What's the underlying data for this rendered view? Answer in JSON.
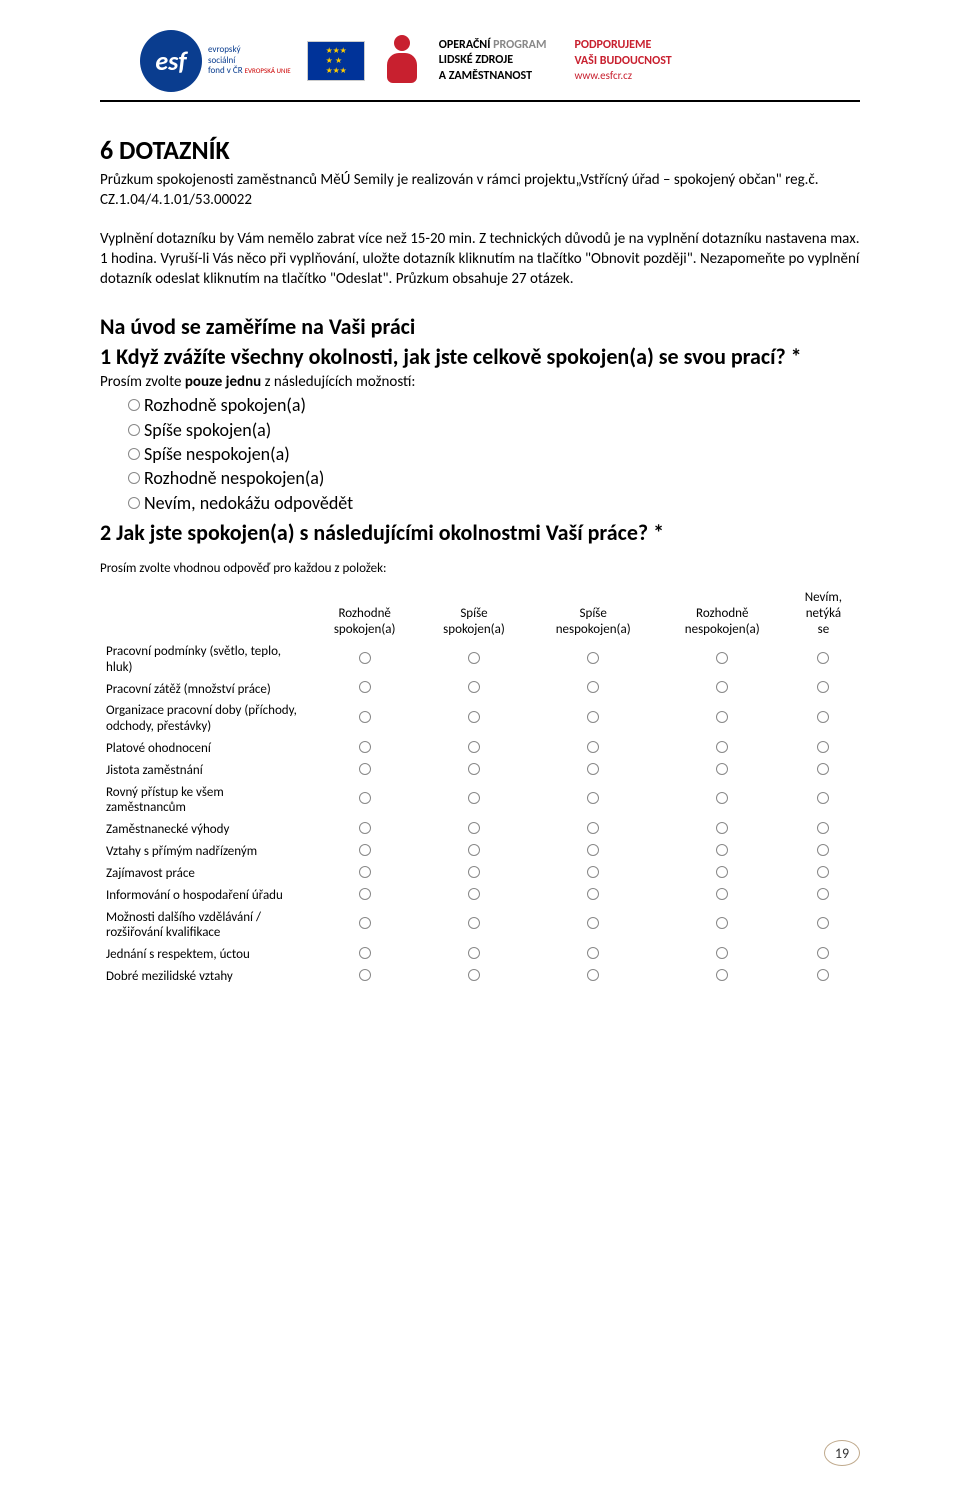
{
  "header": {
    "esf_label_line1": "evropský",
    "esf_label_line2": "sociální",
    "esf_label_line3": "fond v ČR",
    "esf_label_suffix": "EVROPSKÁ UNIE",
    "op_line1a": "OPERAČNÍ",
    "op_line1b": "PROGRAM",
    "op_line2a": "LIDSKÉ ZDROJE",
    "op_line3a": "A ZAMĚSTNANOST",
    "op_line4a": "PODPORUJEME",
    "op_line5a": "VAŠI BUDOUCNOST",
    "op_link": "www.esfcr.cz"
  },
  "section": {
    "title": "6   DOTAZNÍK",
    "intro": "Průzkum spokojenosti zaměstnanců MěÚ Semily je realizován v rámci projektu„Vstřícný úřad – spokojený občan\" reg.č. CZ.1.04/4.1.01/53.00022",
    "instructions": "Vyplnění dotazníku by Vám nemělo zabrat více než 15-20 min. Z technických důvodů je na vyplnění dotazníku nastavena max. 1 hodina. Vyruší-li Vás něco při vyplňování, uložte dotazník kliknutím na tlačítko \"Obnovit později\". Nezapomeňte po vyplnění dotazník odeslat kliknutím na tlačítko \"Odeslat\". Průzkum obsahuje 27 otázek.",
    "subsection": "Na úvod se zaměříme na Vaši práci"
  },
  "q1": {
    "title": "1 Když zvážíte všechny okolnosti, jak jste celkově spokojen(a) se svou prací? *",
    "prompt": "Prosím zvolte pouze jednu z následujících možností:",
    "options": [
      "Rozhodně spokojen(a)",
      "Spíše spokojen(a)",
      "Spíše nespokojen(a)",
      "Rozhodně nespokojen(a)",
      "Nevím, nedokážu odpovědět"
    ]
  },
  "q2": {
    "title": "2 Jak jste spokojen(a) s následujícími okolnostmi Vaší práce? *",
    "prompt": "Prosím zvolte vhodnou odpověď pro každou z položek:",
    "columns": [
      "Rozhodně\nspokojen(a)",
      "Spíše\nspokojen(a)",
      "Spíše\nnespokojen(a)",
      "Rozhodně\nnespokojen(a)",
      "Nevím,\nnetýká\nse"
    ],
    "rows": [
      "Pracovní podmínky (světlo, teplo, hluk)",
      "Pracovní zátěž (množství práce)",
      "Organizace pracovní doby (příchody, odchody, přestávky)",
      "Platové ohodnocení",
      "Jistota zaměstnání",
      "Rovný přístup ke všem zaměstnancům",
      "Zaměstnanecké výhody",
      "Vztahy s přímým nadřízeným",
      "Zajímavost práce",
      "Informování o hospodaření úřadu",
      "Možnosti dalšího vzdělávání / rozšiřování kvalifikace",
      "Jednání s respektem, úctou",
      "Dobré mezilidské vztahy"
    ]
  },
  "page_number": "19",
  "colors": {
    "esf_blue": "#0a3d8f",
    "eu_blue": "#003399",
    "eu_gold": "#ffcc00",
    "brand_red": "#c8202f",
    "text_black": "#000000",
    "text_gray": "#888888",
    "page_border": "#bfa98c"
  },
  "typography": {
    "body_fontsize": 15,
    "title_fontsize": 26,
    "question_fontsize": 22,
    "option_fontsize": 18,
    "matrix_fontsize": 13
  }
}
